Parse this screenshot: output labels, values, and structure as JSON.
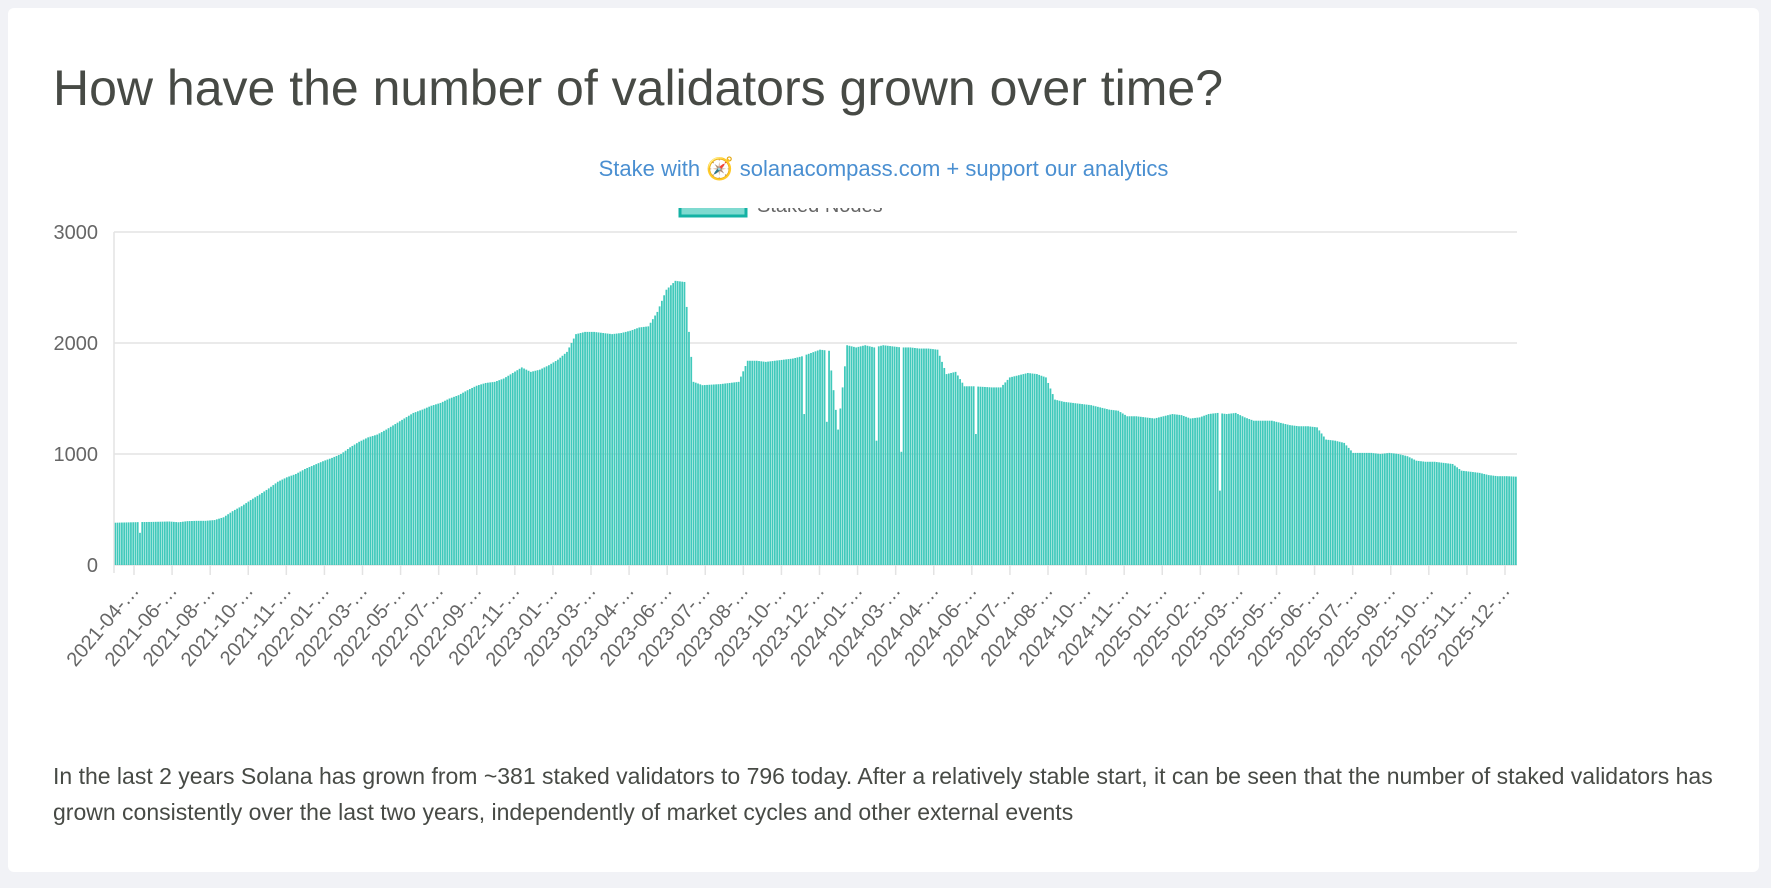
{
  "page": {
    "title": "How have the number of validators grown over time?",
    "stake_link": {
      "prefix": "Stake with",
      "icon": "compass-emoji-icon",
      "icon_glyph": "🧭",
      "link_text": "solanacompass.com",
      "suffix": "+ support our analytics"
    },
    "description": "In the last 2 years Solana has grown from ~381 staked validators to 796 today. After a relatively stable start, it can be seen that the number of staked validators has grown consistently over the last two years, independently of market cycles and other external events"
  },
  "colors": {
    "bar_fill": "#40c9bb",
    "legend_fill": "#7fdad0",
    "legend_border": "#14b2a4",
    "grid": "#e3e3e3",
    "axis_text": "#666666",
    "link": "#4a8fd1"
  },
  "chart_data": {
    "type": "bar",
    "title": "",
    "xlabel": "",
    "ylabel": "",
    "ylim": [
      0,
      3000
    ],
    "yticks": [
      0,
      1000,
      2000,
      3000
    ],
    "grid": true,
    "legend_position": "top-center",
    "series": [
      {
        "name": "Staked Nodes",
        "x_range": [
          "2021-04",
          "2026-01"
        ],
        "values": [
          381,
          383,
          385,
          387,
          388,
          390,
          392,
          385,
          395,
          398,
          398,
          405,
          430,
          485,
          530,
          585,
          635,
          690,
          750,
          790,
          820,
          865,
          900,
          935,
          965,
          1000,
          1060,
          1110,
          1150,
          1175,
          1220,
          1270,
          1320,
          1370,
          1400,
          1435,
          1460,
          1500,
          1530,
          1575,
          1615,
          1640,
          1650,
          1680,
          1730,
          1780,
          1740,
          1760,
          1800,
          1850,
          1920,
          2080,
          2100,
          2100,
          2090,
          2080,
          2090,
          2110,
          2140,
          2150,
          2280,
          2480,
          2560,
          2550,
          1650,
          1620,
          1625,
          1630,
          1640,
          1650,
          1840,
          1840,
          1830,
          1840,
          1850,
          1860,
          1880,
          1910,
          1940,
          1930,
          1220,
          1980,
          1960,
          1980,
          1960,
          1980,
          1970,
          1960,
          1960,
          1950,
          1950,
          1940,
          1720,
          1740,
          1610,
          1610,
          1605,
          1600,
          1600,
          1690,
          1710,
          1730,
          1720,
          1690,
          1490,
          1470,
          1460,
          1450,
          1440,
          1420,
          1400,
          1390,
          1340,
          1340,
          1330,
          1320,
          1340,
          1360,
          1350,
          1320,
          1330,
          1360,
          1370,
          1360,
          1370,
          1330,
          1300,
          1300,
          1300,
          1280,
          1260,
          1250,
          1250,
          1240,
          1130,
          1120,
          1100,
          1010,
          1010,
          1010,
          1000,
          1010,
          1000,
          980,
          940,
          930,
          930,
          920,
          910,
          850,
          840,
          830,
          810,
          800,
          800,
          796
        ],
        "dips": [
          {
            "at": "2021-05",
            "value": 290
          },
          {
            "at": "2023-08",
            "value": 1360
          },
          {
            "at": "2023-09",
            "value": 1290
          },
          {
            "at": "2023-11",
            "value": 1120
          },
          {
            "at": "2023-12",
            "value": 1020
          },
          {
            "at": "2024-03",
            "value": 1180
          },
          {
            "at": "2025-01",
            "value": 670
          }
        ]
      }
    ],
    "x_tick_labels": [
      "2021-04-…",
      "2021-06-…",
      "2021-08-…",
      "2021-10-…",
      "2021-11-…",
      "2022-01-…",
      "2022-03-…",
      "2022-05-…",
      "2022-07-…",
      "2022-09-…",
      "2022-11-…",
      "2023-01-…",
      "2023-03-…",
      "2023-04-…",
      "2023-06-…",
      "2023-07-…",
      "2023-08-…",
      "2023-10-…",
      "2023-12-…",
      "2024-01-…",
      "2024-03-…",
      "2024-04-…",
      "2024-06-…",
      "2024-07-…",
      "2024-08-…",
      "2024-10-…",
      "2024-11-…",
      "2025-01-…",
      "2025-02-…",
      "2025-03-…",
      "2025-05-…",
      "2025-06-…",
      "2025-07-…",
      "2025-09-…",
      "2025-10-…",
      "2025-11-…",
      "2025-12-…"
    ]
  }
}
